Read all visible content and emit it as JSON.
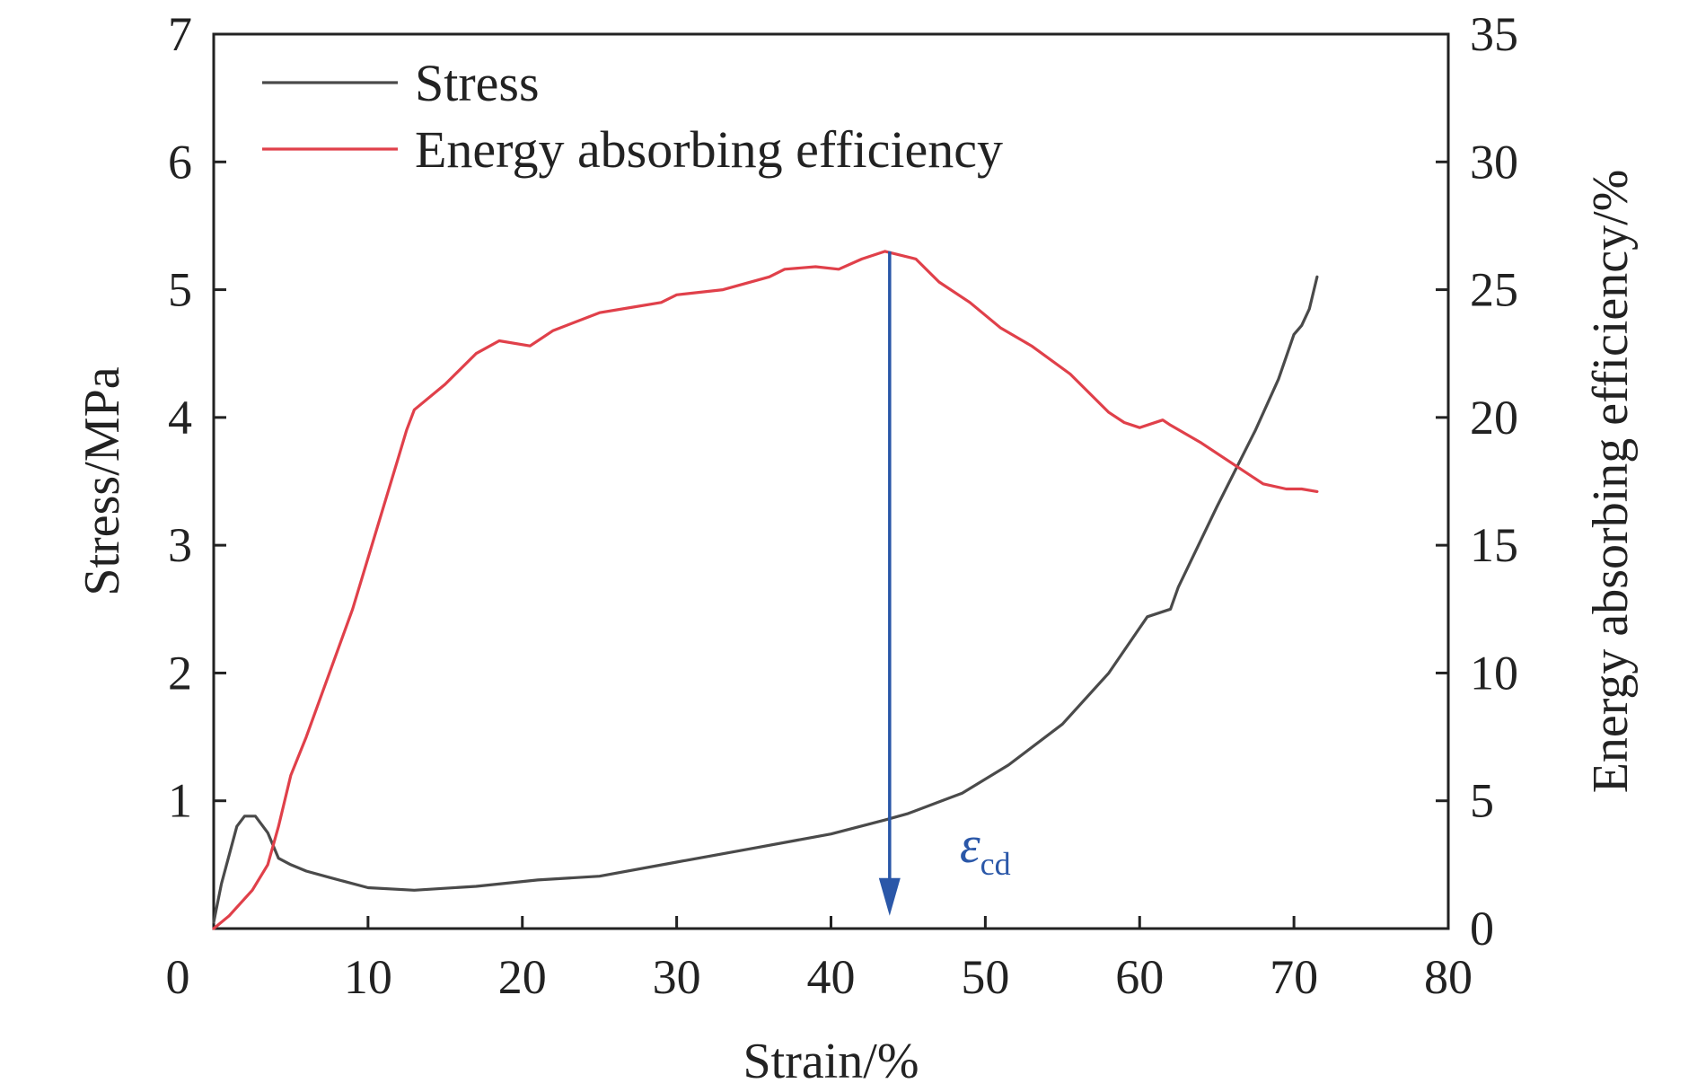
{
  "chart_data": {
    "type": "line",
    "xlabel": "Strain/%",
    "ylabel_left": "Stress/MPa",
    "ylabel_right": "Energy absorbing efficiency/%",
    "xlim": [
      0,
      80
    ],
    "ylim_left": [
      0,
      7
    ],
    "ylim_right": [
      0,
      35
    ],
    "x_ticks": [
      0,
      10,
      20,
      30,
      40,
      50,
      60,
      70,
      80
    ],
    "y_left_ticks": [
      1,
      2,
      3,
      4,
      5,
      6,
      7
    ],
    "y_right_ticks": [
      0,
      5,
      10,
      15,
      20,
      25,
      30,
      35
    ],
    "zero_label": "0",
    "grid": false,
    "legend_position": "top-left",
    "series": [
      {
        "name": "Stress",
        "axis": "left",
        "color": "#4a4a4a",
        "points": [
          [
            0,
            0.05
          ],
          [
            0.5,
            0.35
          ],
          [
            1.5,
            0.8
          ],
          [
            2,
            0.88
          ],
          [
            2.7,
            0.88
          ],
          [
            3.5,
            0.75
          ],
          [
            4.2,
            0.55
          ],
          [
            5,
            0.5
          ],
          [
            6,
            0.45
          ],
          [
            7.5,
            0.4
          ],
          [
            10,
            0.32
          ],
          [
            13,
            0.3
          ],
          [
            17,
            0.33
          ],
          [
            21,
            0.38
          ],
          [
            25,
            0.41
          ],
          [
            30,
            0.52
          ],
          [
            35,
            0.63
          ],
          [
            40,
            0.74
          ],
          [
            43.5,
            0.85
          ],
          [
            45,
            0.9
          ],
          [
            48.5,
            1.06
          ],
          [
            51.5,
            1.28
          ],
          [
            55,
            1.6
          ],
          [
            58,
            2.0
          ],
          [
            60.5,
            2.44
          ],
          [
            62,
            2.5
          ],
          [
            62.5,
            2.67
          ],
          [
            65,
            3.3
          ],
          [
            67.5,
            3.9
          ],
          [
            69,
            4.3
          ],
          [
            70,
            4.65
          ],
          [
            70.5,
            4.72
          ],
          [
            71,
            4.85
          ],
          [
            71.5,
            5.1
          ]
        ]
      },
      {
        "name": "Energy absorbing efficiency",
        "axis": "right",
        "color": "#e0404a",
        "points": [
          [
            0,
            0
          ],
          [
            1,
            0.5
          ],
          [
            2.5,
            1.5
          ],
          [
            3.5,
            2.5
          ],
          [
            4.2,
            4
          ],
          [
            5,
            6
          ],
          [
            6,
            7.5
          ],
          [
            7.5,
            10
          ],
          [
            9,
            12.5
          ],
          [
            10.5,
            15.5
          ],
          [
            12,
            18.5
          ],
          [
            12.5,
            19.5
          ],
          [
            13,
            20.3
          ],
          [
            15,
            21.3
          ],
          [
            17,
            22.5
          ],
          [
            18.5,
            23
          ],
          [
            20.5,
            22.8
          ],
          [
            22,
            23.4
          ],
          [
            25,
            24.1
          ],
          [
            27,
            24.3
          ],
          [
            29,
            24.5
          ],
          [
            30,
            24.8
          ],
          [
            33,
            25
          ],
          [
            36,
            25.5
          ],
          [
            37,
            25.8
          ],
          [
            39,
            25.9
          ],
          [
            40.5,
            25.8
          ],
          [
            42,
            26.2
          ],
          [
            43.5,
            26.5
          ],
          [
            45.5,
            26.2
          ],
          [
            47,
            25.3
          ],
          [
            49,
            24.5
          ],
          [
            51,
            23.5
          ],
          [
            53,
            22.8
          ],
          [
            55.5,
            21.7
          ],
          [
            58,
            20.2
          ],
          [
            59,
            19.8
          ],
          [
            60,
            19.6
          ],
          [
            61.5,
            19.9
          ],
          [
            62,
            19.7
          ],
          [
            64,
            19
          ],
          [
            66,
            18.2
          ],
          [
            68,
            17.4
          ],
          [
            69.5,
            17.2
          ],
          [
            70.5,
            17.2
          ],
          [
            71.5,
            17.1
          ]
        ]
      }
    ],
    "annotation": {
      "label": "ε",
      "subscript": "cd",
      "x": 43.8,
      "y_start_right": 26.5,
      "y_end_right": 0.5,
      "color": "#2a57a8"
    }
  }
}
